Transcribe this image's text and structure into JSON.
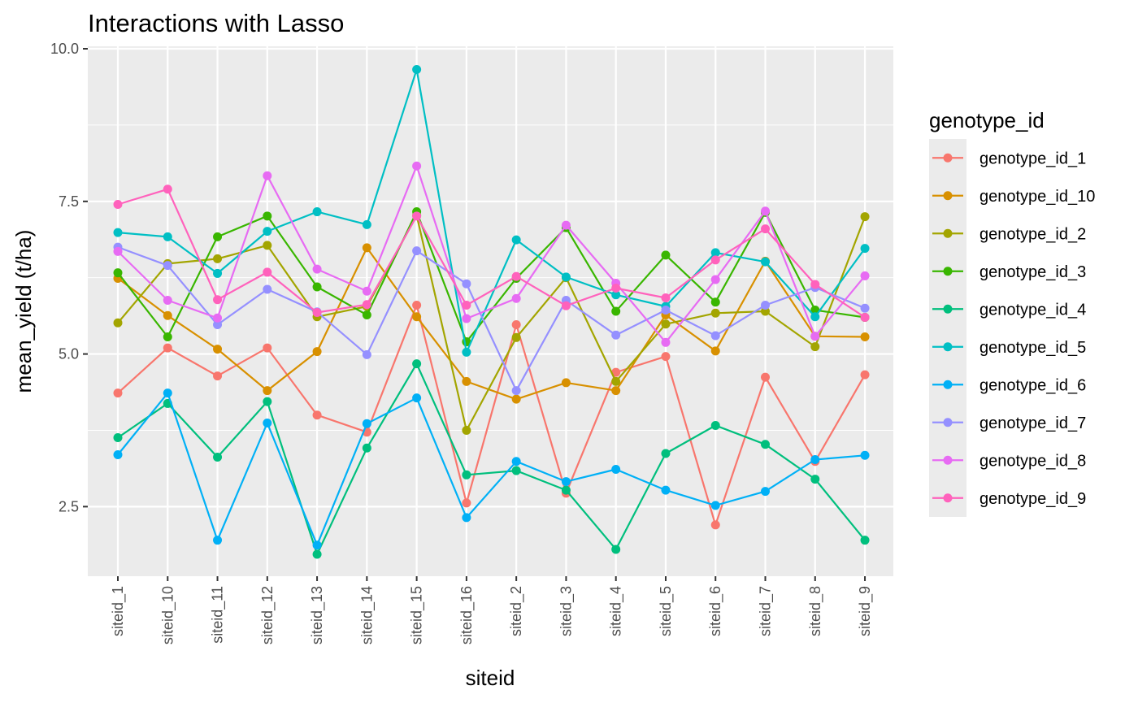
{
  "chart_data": {
    "type": "line",
    "title": "Interactions with Lasso",
    "xlabel": "siteid",
    "ylabel": "mean_yield (t/ha)",
    "ylim": [
      1.36,
      10.04
    ],
    "y_ticks": [
      2.5,
      5.0,
      7.5,
      10.0
    ],
    "y_tick_labels": [
      "2.5",
      "5.0",
      "7.5",
      "10.0"
    ],
    "grid": true,
    "legend_title": "genotype_id",
    "legend_position": "right",
    "categories": [
      "siteid_1",
      "siteid_10",
      "siteid_11",
      "siteid_12",
      "siteid_13",
      "siteid_14",
      "siteid_15",
      "siteid_16",
      "siteid_2",
      "siteid_3",
      "siteid_4",
      "siteid_5",
      "siteid_6",
      "siteid_7",
      "siteid_8",
      "siteid_9"
    ],
    "series": [
      {
        "name": "genotype_id_1",
        "color": "#F8766D",
        "values": [
          4.36,
          5.1,
          4.64,
          5.1,
          4.0,
          3.72,
          5.8,
          2.56,
          5.48,
          2.72,
          4.7,
          4.96,
          2.2,
          4.62,
          3.24,
          4.66
        ]
      },
      {
        "name": "genotype_id_10",
        "color": "#D89000",
        "values": [
          6.24,
          5.63,
          5.08,
          4.4,
          5.04,
          6.74,
          5.61,
          4.55,
          4.26,
          4.53,
          4.4,
          5.64,
          5.05,
          6.52,
          5.29,
          5.28
        ]
      },
      {
        "name": "genotype_id_2",
        "color": "#A3A500",
        "values": [
          5.51,
          6.48,
          6.56,
          6.78,
          5.61,
          5.78,
          7.27,
          3.75,
          5.27,
          6.25,
          4.55,
          5.49,
          5.67,
          5.7,
          5.12,
          7.25
        ]
      },
      {
        "name": "genotype_id_3",
        "color": "#39B600",
        "values": [
          6.33,
          5.28,
          6.92,
          7.26,
          6.1,
          5.64,
          7.33,
          5.2,
          6.24,
          7.07,
          5.7,
          6.62,
          5.85,
          7.32,
          5.72,
          5.6
        ]
      },
      {
        "name": "genotype_id_4",
        "color": "#00BF7D",
        "values": [
          3.63,
          4.19,
          3.31,
          4.22,
          1.72,
          3.46,
          4.84,
          3.02,
          3.09,
          2.77,
          1.8,
          3.37,
          3.83,
          3.52,
          2.95,
          1.95
        ]
      },
      {
        "name": "genotype_id_5",
        "color": "#00BFC4",
        "values": [
          6.99,
          6.92,
          6.32,
          7.01,
          7.33,
          7.12,
          9.66,
          5.03,
          6.87,
          6.26,
          5.97,
          5.78,
          6.66,
          6.51,
          5.61,
          6.73
        ]
      },
      {
        "name": "genotype_id_6",
        "color": "#00B0F6",
        "values": [
          3.35,
          4.36,
          1.95,
          3.87,
          1.87,
          3.86,
          4.28,
          2.32,
          3.24,
          2.91,
          3.11,
          2.77,
          2.52,
          2.75,
          3.27,
          3.34
        ]
      },
      {
        "name": "genotype_id_7",
        "color": "#9590FF",
        "values": [
          6.75,
          6.45,
          5.48,
          6.06,
          5.69,
          4.99,
          6.69,
          6.15,
          4.4,
          5.88,
          5.31,
          5.72,
          5.3,
          5.8,
          6.09,
          5.75
        ]
      },
      {
        "name": "genotype_id_8",
        "color": "#E76BF3",
        "values": [
          6.68,
          5.88,
          5.59,
          7.92,
          6.39,
          6.03,
          8.08,
          5.58,
          5.91,
          7.11,
          6.16,
          5.19,
          6.22,
          7.34,
          5.29,
          6.28
        ]
      },
      {
        "name": "genotype_id_9",
        "color": "#FF62BC",
        "values": [
          7.45,
          7.7,
          5.89,
          6.34,
          5.68,
          5.81,
          7.26,
          5.8,
          6.27,
          5.79,
          6.08,
          5.92,
          6.54,
          7.05,
          6.14,
          5.6
        ]
      }
    ]
  }
}
